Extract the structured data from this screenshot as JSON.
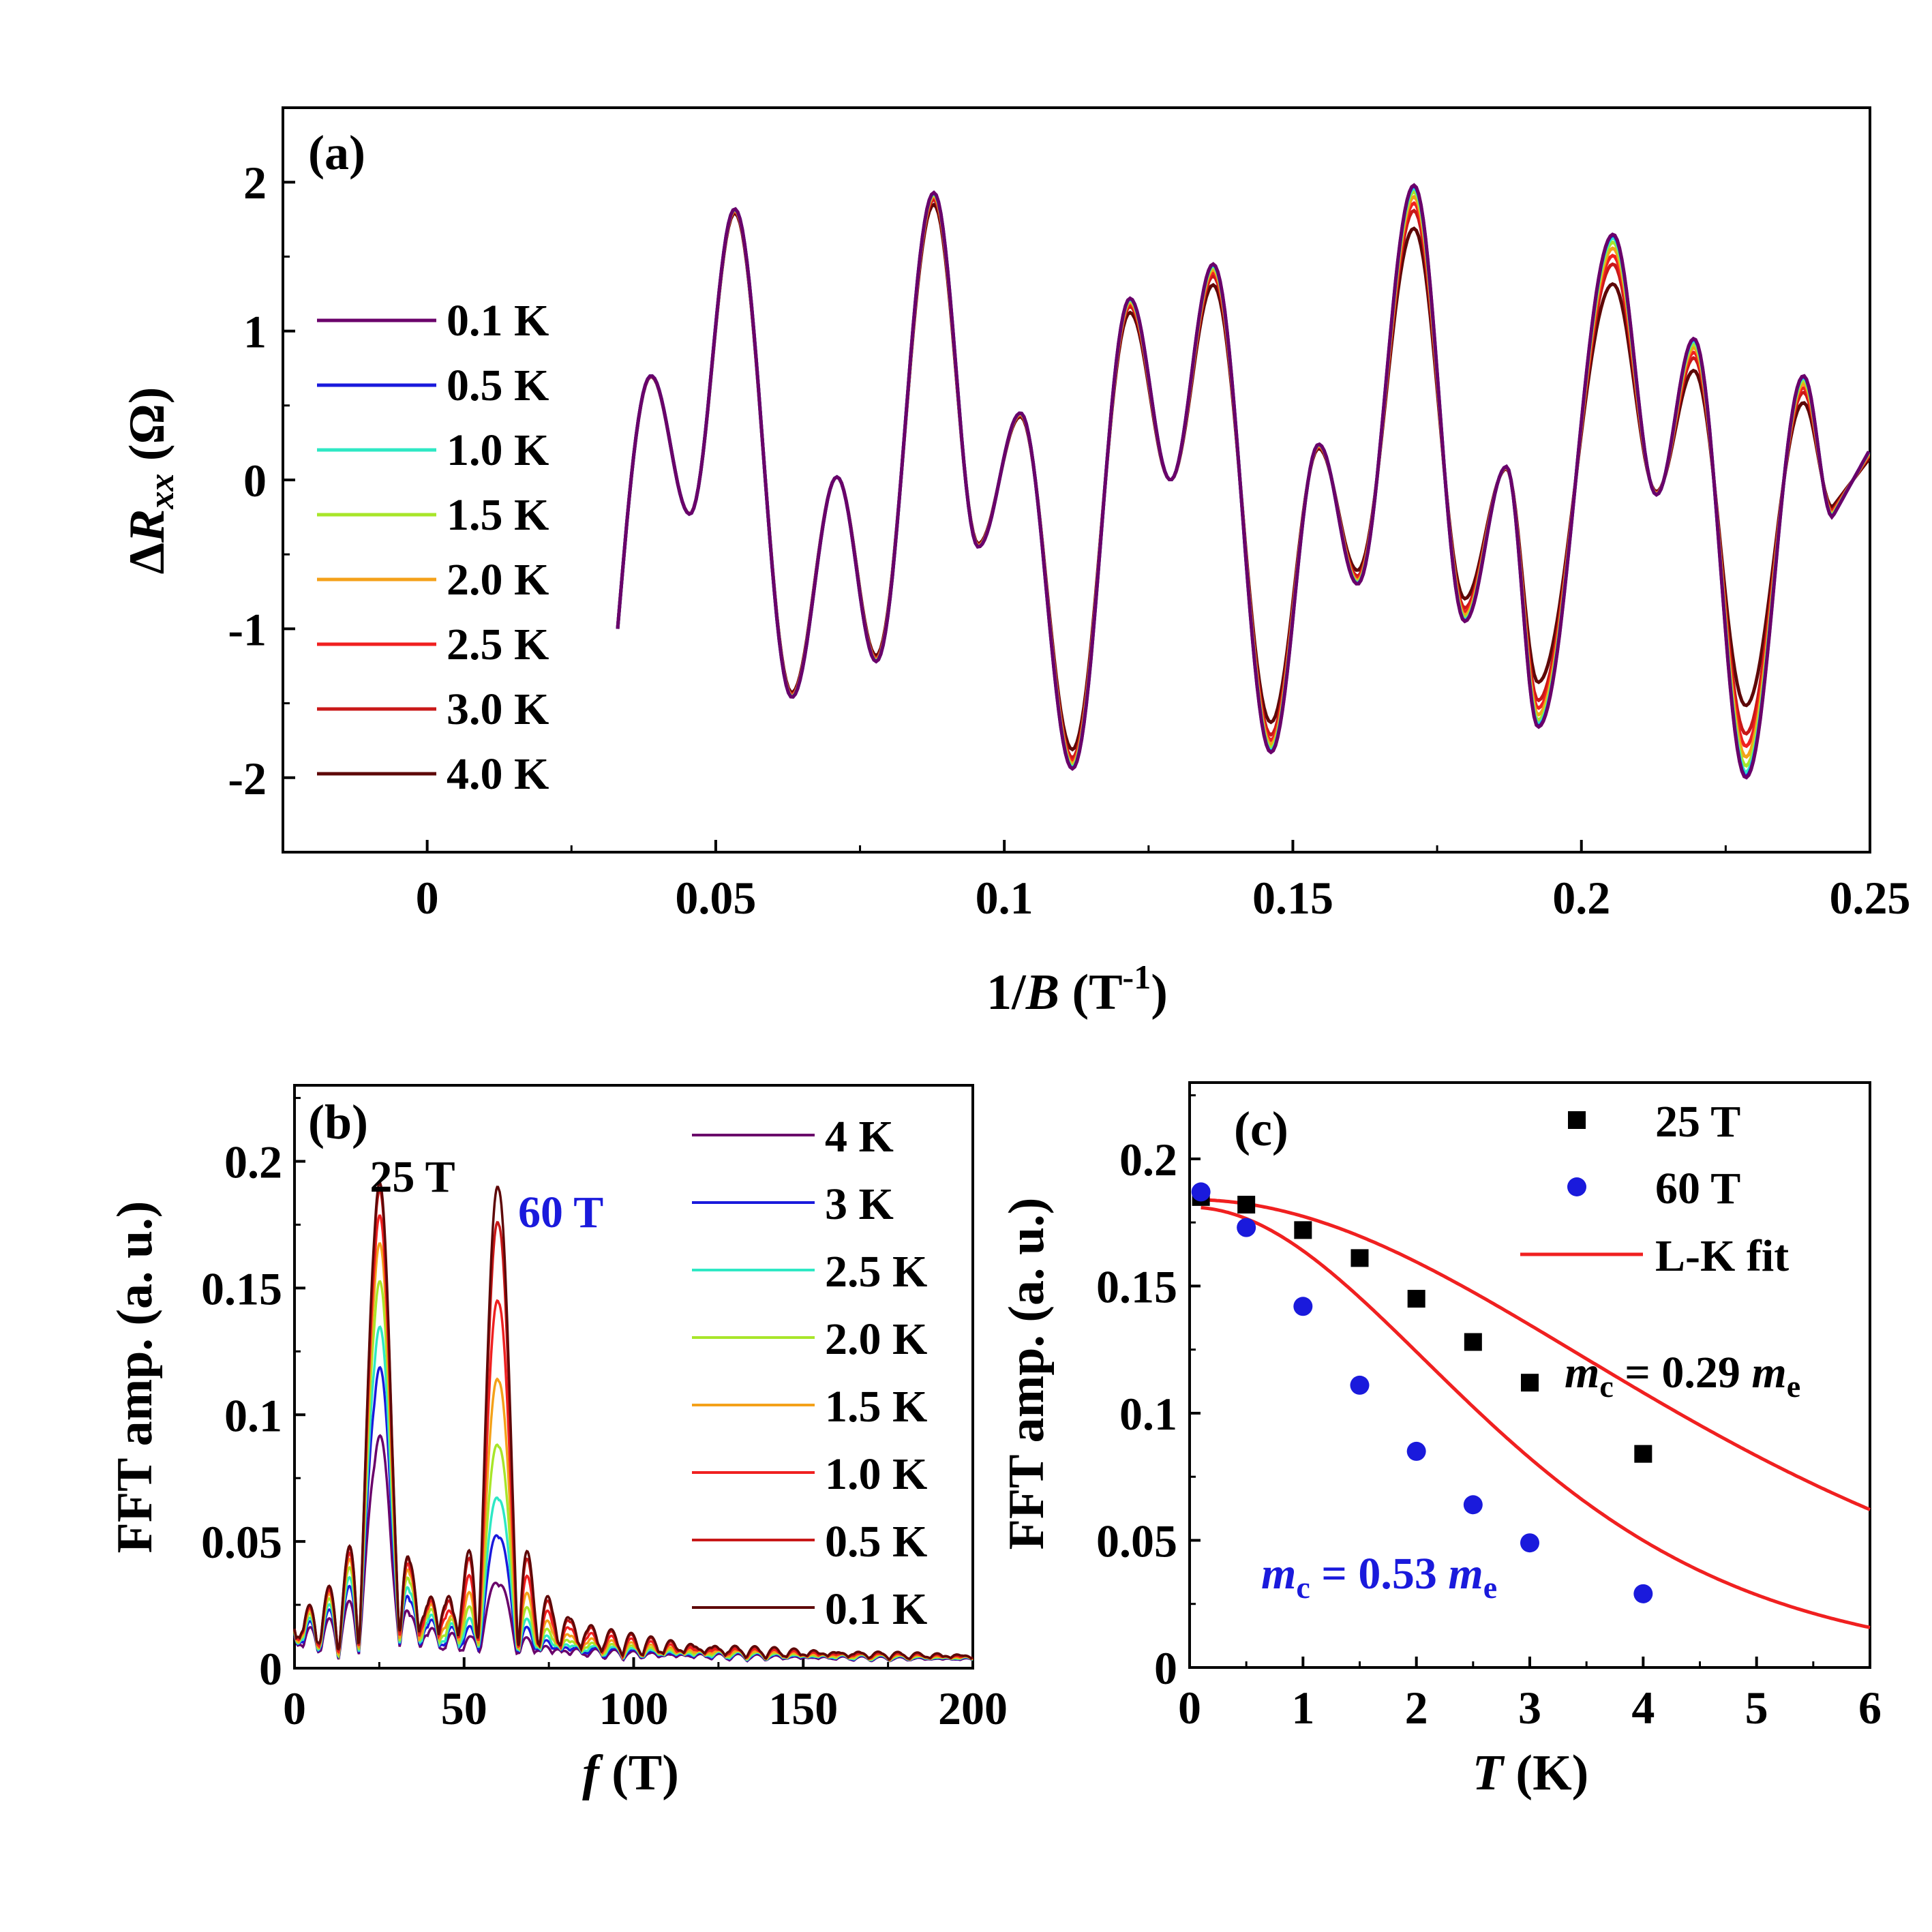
{
  "chart_data": [
    {
      "id": "a",
      "type": "line",
      "panel_label": "(a)",
      "xlabel": "1/B (T-1)",
      "xlabel_parts": {
        "pre": "1/",
        "ital": "B",
        "post": " (T",
        "sup": "-1",
        "close": ")"
      },
      "ylabel": "ΔRxx (Ω)",
      "ylabel_parts": {
        "delta": "Δ",
        "R": "R",
        "sub": "xx",
        "post": " (Ω)"
      },
      "xlim": [
        -0.025,
        0.25
      ],
      "ylim": [
        -2.5,
        2.5
      ],
      "xticks": [
        0,
        0.05,
        0.1,
        0.15,
        0.2,
        0.25
      ],
      "xtick_labels": [
        "0",
        "0.05",
        "0.1",
        "0.15",
        "0.2",
        "0.25"
      ],
      "yticks": [
        -2,
        -1,
        0,
        1,
        2
      ],
      "ytick_labels": [
        "-2",
        "-1",
        "0",
        "1",
        "2"
      ],
      "x_start": 0.033,
      "series": [
        {
          "name": "0.1 K",
          "color": "#6a006a",
          "T": 0.1
        },
        {
          "name": "0.5 K",
          "color": "#1a1adc",
          "T": 0.5
        },
        {
          "name": "1.0 K",
          "color": "#2ee8c4",
          "T": 1.0
        },
        {
          "name": "1.5 K",
          "color": "#a8e62a",
          "T": 1.5
        },
        {
          "name": "2.0 K",
          "color": "#f4a11a",
          "T": 2.0
        },
        {
          "name": "2.5 K",
          "color": "#f02020",
          "T": 2.5
        },
        {
          "name": "3.0 K",
          "color": "#c81818",
          "T": 3.0
        },
        {
          "name": "4.0 K",
          "color": "#5e0808",
          "T": 4.0
        }
      ]
    },
    {
      "id": "b",
      "type": "line",
      "panel_label": "(b)",
      "xlabel": "f (T)",
      "xlabel_parts": {
        "ital": "f",
        "post": " (T)"
      },
      "ylabel": "FFT amp. (a. u.)",
      "xlim": [
        0,
        200
      ],
      "ylim": [
        0,
        0.23
      ],
      "xticks": [
        0,
        50,
        100,
        150,
        200
      ],
      "xtick_labels": [
        "0",
        "50",
        "100",
        "150",
        "200"
      ],
      "yticks": [
        0,
        0.05,
        0.1,
        0.15,
        0.2
      ],
      "ytick_labels": [
        "0",
        "0.05",
        "0.1",
        "0.15",
        "0.2"
      ],
      "annotations": [
        {
          "text": "25 T",
          "color": "#000000"
        },
        {
          "text": "60 T",
          "color": "#1a1adc"
        }
      ],
      "peaks": [
        25,
        60
      ],
      "series": [
        {
          "name": "4 K",
          "color": "#6a006a",
          "amp25": 0.085,
          "amp60": 0.03
        },
        {
          "name": "3 K",
          "color": "#1a1adc",
          "amp25": 0.112,
          "amp60": 0.049
        },
        {
          "name": "2.5 K",
          "color": "#2ee8c4",
          "amp25": 0.128,
          "amp60": 0.064
        },
        {
          "name": "2.0 K",
          "color": "#a8e62a",
          "amp25": 0.146,
          "amp60": 0.085
        },
        {
          "name": "1.5 K",
          "color": "#f4a11a",
          "amp25": 0.161,
          "amp60": 0.111
        },
        {
          "name": "1.0 K",
          "color": "#f02020",
          "amp25": 0.172,
          "amp60": 0.142
        },
        {
          "name": "0.5 K",
          "color": "#c81818",
          "amp25": 0.182,
          "amp60": 0.173
        },
        {
          "name": "0.1 K",
          "color": "#5e0808",
          "amp25": 0.185,
          "amp60": 0.187
        }
      ]
    },
    {
      "id": "c",
      "type": "scatter",
      "panel_label": "(c)",
      "xlabel": "T (K)",
      "xlabel_parts": {
        "ital": "T",
        "post": " (K)"
      },
      "ylabel": "FFT amp. (a. u.)",
      "xlim": [
        0,
        6
      ],
      "ylim": [
        0,
        0.23
      ],
      "xticks": [
        0,
        1,
        2,
        3,
        4,
        5,
        6
      ],
      "xtick_labels": [
        "0",
        "1",
        "2",
        "3",
        "4",
        "5",
        "6"
      ],
      "yticks": [
        0,
        0.05,
        0.1,
        0.15,
        0.2
      ],
      "ytick_labels": [
        "0",
        "0.05",
        "0.1",
        "0.15",
        "0.2"
      ],
      "series": [
        {
          "name": "25 T",
          "marker": "square",
          "color": "#000000",
          "x": [
            0.1,
            0.5,
            1.0,
            1.5,
            2.0,
            2.5,
            3.0,
            4.0
          ],
          "y": [
            0.185,
            0.182,
            0.172,
            0.161,
            0.145,
            0.128,
            0.112,
            0.084
          ]
        },
        {
          "name": "60 T",
          "marker": "circle",
          "color": "#1a1adc",
          "x": [
            0.1,
            0.5,
            1.0,
            1.5,
            2.0,
            2.5,
            3.0,
            4.0
          ],
          "y": [
            0.187,
            0.173,
            0.142,
            0.111,
            0.085,
            0.064,
            0.049,
            0.029
          ]
        }
      ],
      "fits": [
        {
          "name": "L-K fit",
          "color": "#f02020",
          "A0": 0.184,
          "k": 0.47
        },
        {
          "name": "L-K fit",
          "color": "#f02020",
          "A0": 0.181,
          "k": 0.78
        }
      ],
      "annotations": [
        {
          "m": "m",
          "sub": "c",
          "eq": " = 0.29 ",
          "m2": "m",
          "sub2": "e",
          "color": "#000000"
        },
        {
          "m": "m",
          "sub": "c",
          "eq": " = 0.53 ",
          "m2": "m",
          "sub2": "e",
          "color": "#1a1adc"
        }
      ],
      "legend": [
        "25 T",
        "60 T",
        "L-K fit"
      ]
    }
  ]
}
